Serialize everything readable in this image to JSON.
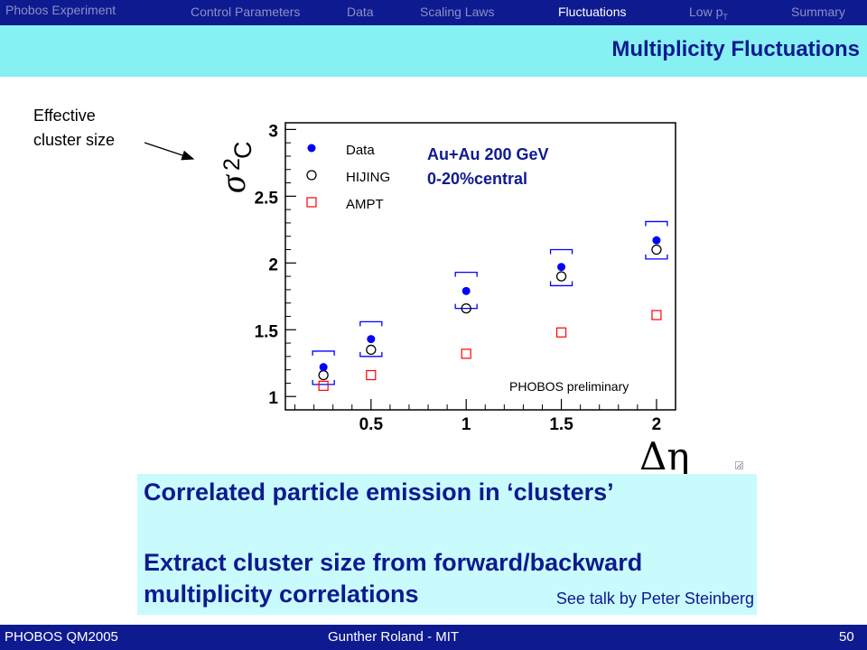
{
  "header": {
    "brand": "Phobos Experiment",
    "nav": [
      "Control Parameters",
      "Data",
      "Scaling Laws",
      "Fluctuations",
      "Low p",
      "Summary"
    ],
    "nav_subscript": "T",
    "active_item": "Fluctuations",
    "colors": {
      "bar": "#0e1a8f",
      "inactive_text": "#8c8fc7",
      "active_text": "#ffffff"
    }
  },
  "slide": {
    "title": "Multiplicity Fluctuations",
    "title_band_color": "#86f0f3"
  },
  "callout": {
    "line1": "Effective",
    "line2": "cluster size"
  },
  "chart_data": {
    "type": "scatter",
    "ylabel_symbol": "σ",
    "ylabel_superscript": "2",
    "ylabel_subscript": "C",
    "xlabel": "Δη",
    "xlim": [
      0.05,
      2.1
    ],
    "ylim": [
      0.9,
      3.05
    ],
    "x_ticks": [
      0.5,
      1,
      1.5,
      2
    ],
    "x_tick_labels": [
      "0.5",
      "1",
      "1.5",
      "2"
    ],
    "y_ticks": [
      1,
      1.5,
      2,
      2.5,
      3
    ],
    "y_tick_labels": [
      "1",
      "1.5",
      "2",
      "2.5",
      "3"
    ],
    "grid": false,
    "legend_placement": "top-left",
    "annotation_lines": [
      "Au+Au 200 GeV",
      "0-20%central"
    ],
    "watermark": "PHOBOS preliminary",
    "x": [
      0.25,
      0.5,
      1.0,
      1.5,
      2.0
    ],
    "series": [
      {
        "name": "Data",
        "marker": "filled-circle",
        "color": "#0000ff",
        "values": [
          1.22,
          1.43,
          1.79,
          1.97,
          2.17
        ]
      },
      {
        "name": "HIJING",
        "marker": "open-circle",
        "color": "#000000",
        "values": [
          1.16,
          1.35,
          1.66,
          1.9,
          2.1
        ]
      },
      {
        "name": "AMPT",
        "marker": "open-square",
        "color": "#ff0000",
        "values": [
          1.08,
          1.16,
          1.32,
          1.48,
          1.61
        ]
      }
    ],
    "systematic_brackets": {
      "applies_to": "Data",
      "upper": [
        1.34,
        1.56,
        1.93,
        2.1,
        2.31
      ],
      "lower": [
        1.09,
        1.3,
        1.66,
        1.83,
        2.03
      ]
    }
  },
  "textbox": {
    "line1": "Correlated particle emission in ‘clusters’",
    "line2": "Extract cluster size from forward/backward",
    "line3": "multiplicity correlations",
    "note": "See talk by Peter Steinberg",
    "bg_color": "#c9fbfd"
  },
  "footer": {
    "left": "PHOBOS QM2005",
    "center": "Gunther Roland - MIT",
    "page": "50"
  }
}
